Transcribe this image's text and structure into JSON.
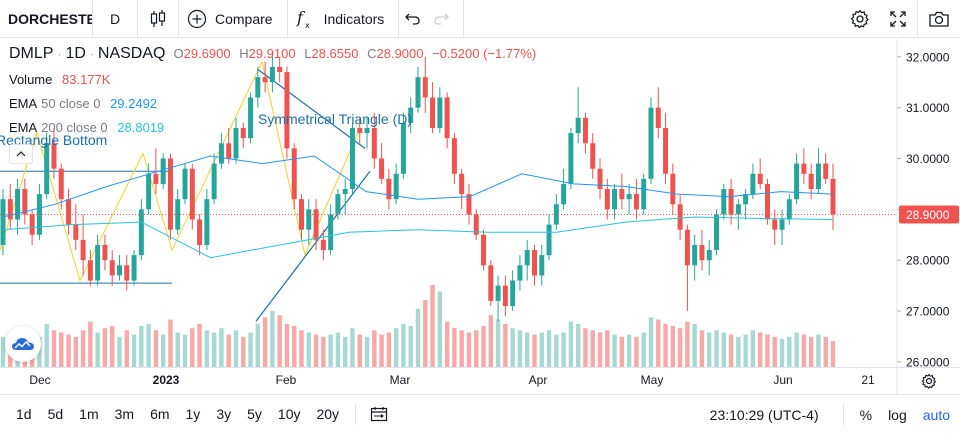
{
  "toolbar": {
    "symbol": "DORCHESTER",
    "interval": "D",
    "compare_label": "Compare",
    "indicators_label": "Indicators"
  },
  "legend": {
    "symbol": "DMLP",
    "interval": "1D",
    "exchange": "NASDAQ",
    "o_label": "O",
    "o": "29.6900",
    "h_label": "H",
    "h": "29.9100",
    "l_label": "L",
    "l": "28.6550",
    "c_label": "C",
    "c": "28.9000",
    "change": "−0.5200 (−1.77%)",
    "volume_name": "Volume",
    "volume_value": "83.177K",
    "ema50_name": "EMA",
    "ema50_params": "50 close 0",
    "ema50_value": "29.2492",
    "ema200_name": "EMA",
    "ema200_params": "200 close 0",
    "ema200_value": "28.8019"
  },
  "annotations": {
    "triangle_label": "Symmetrical Triangle (D)",
    "rectangle_label": "Rectangle Bottom"
  },
  "price_axis": {
    "ticks": [
      "32.0000",
      "31.0000",
      "30.0000",
      "29.0000",
      "28.0000",
      "27.0000",
      "26.0000"
    ],
    "last_price": "28.9000"
  },
  "time_axis": {
    "ticks": [
      "Dec",
      "2023",
      "Feb",
      "Mar",
      "Apr",
      "May",
      "Jun",
      "21"
    ]
  },
  "bottombar": {
    "ranges": [
      "1d",
      "5d",
      "1m",
      "3m",
      "6m",
      "1y",
      "3y",
      "5y",
      "10y",
      "20y"
    ],
    "clock": "23:10:29 (UTC-4)",
    "percent_label": "%",
    "log_label": "log",
    "auto_label": "auto"
  },
  "colors": {
    "up": "#26a69a",
    "down": "#ef5350",
    "vol_up": "#a8d8d2",
    "vol_down": "#f7a9a7",
    "ema50": "#2196f3",
    "ema200": "#26c6da",
    "drawing": "#1e6fa8",
    "zigzag": "#f2d22e"
  },
  "chart_data": {
    "type": "candlestick",
    "symbol": "DMLP",
    "x_range": [
      "2022-11-21",
      "2023-06-21"
    ],
    "ylim": [
      25.9,
      32.35
    ],
    "candles": [
      {
        "o": 28.3,
        "h": 29.4,
        "l": 28.1,
        "c": 29.2,
        "v": 140
      },
      {
        "o": 29.2,
        "h": 29.5,
        "l": 28.6,
        "c": 28.8,
        "v": 120
      },
      {
        "o": 28.8,
        "h": 29.6,
        "l": 28.5,
        "c": 29.4,
        "v": 110
      },
      {
        "o": 29.4,
        "h": 29.6,
        "l": 28.7,
        "c": 28.9,
        "v": 150
      },
      {
        "o": 28.9,
        "h": 29.0,
        "l": 28.3,
        "c": 28.5,
        "v": 130
      },
      {
        "o": 28.5,
        "h": 29.5,
        "l": 28.4,
        "c": 29.3,
        "v": 140
      },
      {
        "o": 29.3,
        "h": 30.5,
        "l": 29.2,
        "c": 30.3,
        "v": 200
      },
      {
        "o": 30.3,
        "h": 30.6,
        "l": 29.6,
        "c": 29.8,
        "v": 170
      },
      {
        "o": 29.8,
        "h": 29.9,
        "l": 29.0,
        "c": 29.2,
        "v": 160
      },
      {
        "o": 29.2,
        "h": 29.4,
        "l": 28.5,
        "c": 28.7,
        "v": 150
      },
      {
        "o": 28.7,
        "h": 29.1,
        "l": 28.2,
        "c": 28.4,
        "v": 140
      },
      {
        "o": 28.4,
        "h": 28.9,
        "l": 27.7,
        "c": 28.0,
        "v": 170
      },
      {
        "o": 28.0,
        "h": 28.2,
        "l": 27.5,
        "c": 27.6,
        "v": 210
      },
      {
        "o": 27.6,
        "h": 28.5,
        "l": 27.5,
        "c": 28.3,
        "v": 160
      },
      {
        "o": 28.3,
        "h": 28.5,
        "l": 27.8,
        "c": 28.0,
        "v": 180
      },
      {
        "o": 28.0,
        "h": 28.2,
        "l": 27.5,
        "c": 27.7,
        "v": 190
      },
      {
        "o": 27.7,
        "h": 28.1,
        "l": 27.6,
        "c": 27.9,
        "v": 140
      },
      {
        "o": 27.9,
        "h": 28.1,
        "l": 27.4,
        "c": 27.6,
        "v": 170
      },
      {
        "o": 27.6,
        "h": 28.2,
        "l": 27.5,
        "c": 28.1,
        "v": 150
      },
      {
        "o": 28.1,
        "h": 29.2,
        "l": 28.0,
        "c": 29.0,
        "v": 190
      },
      {
        "o": 29.0,
        "h": 29.9,
        "l": 28.9,
        "c": 29.7,
        "v": 200
      },
      {
        "o": 29.7,
        "h": 30.2,
        "l": 29.3,
        "c": 29.5,
        "v": 170
      },
      {
        "o": 29.5,
        "h": 30.1,
        "l": 29.4,
        "c": 30.0,
        "v": 150
      },
      {
        "o": 30.0,
        "h": 30.1,
        "l": 28.4,
        "c": 28.6,
        "v": 220
      },
      {
        "o": 28.6,
        "h": 29.4,
        "l": 28.5,
        "c": 29.2,
        "v": 160
      },
      {
        "o": 29.2,
        "h": 29.9,
        "l": 29.1,
        "c": 29.8,
        "v": 150
      },
      {
        "o": 29.8,
        "h": 29.9,
        "l": 28.6,
        "c": 28.8,
        "v": 180
      },
      {
        "o": 28.8,
        "h": 28.9,
        "l": 28.1,
        "c": 28.3,
        "v": 200
      },
      {
        "o": 28.3,
        "h": 29.4,
        "l": 28.2,
        "c": 29.2,
        "v": 170
      },
      {
        "o": 29.2,
        "h": 30.1,
        "l": 29.1,
        "c": 29.9,
        "v": 160
      },
      {
        "o": 29.9,
        "h": 30.5,
        "l": 29.8,
        "c": 30.3,
        "v": 180
      },
      {
        "o": 30.3,
        "h": 30.6,
        "l": 29.9,
        "c": 30.0,
        "v": 150
      },
      {
        "o": 30.0,
        "h": 30.8,
        "l": 29.9,
        "c": 30.6,
        "v": 170
      },
      {
        "o": 30.6,
        "h": 30.7,
        "l": 30.2,
        "c": 30.4,
        "v": 140
      },
      {
        "o": 30.4,
        "h": 31.3,
        "l": 30.3,
        "c": 31.2,
        "v": 160
      },
      {
        "o": 31.2,
        "h": 31.8,
        "l": 31.0,
        "c": 31.6,
        "v": 200
      },
      {
        "o": 31.6,
        "h": 31.9,
        "l": 31.3,
        "c": 31.5,
        "v": 230
      },
      {
        "o": 31.5,
        "h": 32.1,
        "l": 31.3,
        "c": 31.8,
        "v": 260
      },
      {
        "o": 31.8,
        "h": 32.0,
        "l": 31.5,
        "c": 31.7,
        "v": 240
      },
      {
        "o": 31.7,
        "h": 31.8,
        "l": 30.0,
        "c": 30.2,
        "v": 200
      },
      {
        "o": 30.2,
        "h": 30.3,
        "l": 29.0,
        "c": 29.2,
        "v": 190
      },
      {
        "o": 29.2,
        "h": 29.3,
        "l": 28.4,
        "c": 28.6,
        "v": 170
      },
      {
        "o": 28.6,
        "h": 29.2,
        "l": 28.3,
        "c": 29.0,
        "v": 160
      },
      {
        "o": 29.0,
        "h": 29.2,
        "l": 28.2,
        "c": 28.4,
        "v": 150
      },
      {
        "o": 28.4,
        "h": 28.6,
        "l": 28.0,
        "c": 28.2,
        "v": 140
      },
      {
        "o": 28.2,
        "h": 29.1,
        "l": 28.1,
        "c": 28.9,
        "v": 150
      },
      {
        "o": 28.9,
        "h": 29.4,
        "l": 28.8,
        "c": 29.3,
        "v": 160
      },
      {
        "o": 29.3,
        "h": 29.6,
        "l": 28.9,
        "c": 29.4,
        "v": 140
      },
      {
        "o": 29.4,
        "h": 30.7,
        "l": 29.3,
        "c": 30.6,
        "v": 180
      },
      {
        "o": 30.6,
        "h": 30.8,
        "l": 30.3,
        "c": 30.5,
        "v": 150
      },
      {
        "o": 30.5,
        "h": 30.8,
        "l": 30.2,
        "c": 30.6,
        "v": 140
      },
      {
        "o": 30.6,
        "h": 30.9,
        "l": 29.8,
        "c": 30.0,
        "v": 170
      },
      {
        "o": 30.0,
        "h": 30.3,
        "l": 29.5,
        "c": 29.6,
        "v": 150
      },
      {
        "o": 29.6,
        "h": 29.8,
        "l": 29.0,
        "c": 29.2,
        "v": 160
      },
      {
        "o": 29.2,
        "h": 29.9,
        "l": 29.1,
        "c": 29.7,
        "v": 180
      },
      {
        "o": 29.7,
        "h": 30.9,
        "l": 29.6,
        "c": 30.7,
        "v": 200
      },
      {
        "o": 30.7,
        "h": 31.2,
        "l": 30.5,
        "c": 31.0,
        "v": 190
      },
      {
        "o": 31.0,
        "h": 31.8,
        "l": 30.9,
        "c": 31.6,
        "v": 270
      },
      {
        "o": 31.6,
        "h": 32.0,
        "l": 30.9,
        "c": 31.2,
        "v": 310
      },
      {
        "o": 31.2,
        "h": 31.5,
        "l": 30.5,
        "c": 30.6,
        "v": 380
      },
      {
        "o": 30.6,
        "h": 31.4,
        "l": 30.5,
        "c": 31.2,
        "v": 350
      },
      {
        "o": 31.2,
        "h": 31.3,
        "l": 30.2,
        "c": 30.4,
        "v": 210
      },
      {
        "o": 30.4,
        "h": 30.5,
        "l": 29.5,
        "c": 29.7,
        "v": 180
      },
      {
        "o": 29.7,
        "h": 29.8,
        "l": 29.0,
        "c": 29.3,
        "v": 170
      },
      {
        "o": 29.3,
        "h": 29.5,
        "l": 28.7,
        "c": 28.9,
        "v": 160
      },
      {
        "o": 28.9,
        "h": 29.0,
        "l": 28.4,
        "c": 28.5,
        "v": 170
      },
      {
        "o": 28.5,
        "h": 28.6,
        "l": 27.8,
        "c": 27.9,
        "v": 190
      },
      {
        "o": 27.9,
        "h": 28.0,
        "l": 27.1,
        "c": 27.2,
        "v": 240
      },
      {
        "o": 27.2,
        "h": 27.7,
        "l": 26.8,
        "c": 27.5,
        "v": 220
      },
      {
        "o": 27.5,
        "h": 27.7,
        "l": 26.9,
        "c": 27.1,
        "v": 200
      },
      {
        "o": 27.1,
        "h": 27.8,
        "l": 27.0,
        "c": 27.6,
        "v": 180
      },
      {
        "o": 27.6,
        "h": 28.1,
        "l": 27.4,
        "c": 27.9,
        "v": 170
      },
      {
        "o": 27.9,
        "h": 28.4,
        "l": 27.6,
        "c": 28.2,
        "v": 160
      },
      {
        "o": 28.2,
        "h": 28.3,
        "l": 27.5,
        "c": 27.7,
        "v": 150
      },
      {
        "o": 27.7,
        "h": 28.3,
        "l": 27.5,
        "c": 28.1,
        "v": 160
      },
      {
        "o": 28.1,
        "h": 28.9,
        "l": 28.0,
        "c": 28.7,
        "v": 170
      },
      {
        "o": 28.7,
        "h": 29.3,
        "l": 28.6,
        "c": 29.1,
        "v": 150
      },
      {
        "o": 29.1,
        "h": 29.8,
        "l": 29.0,
        "c": 29.5,
        "v": 160
      },
      {
        "o": 29.5,
        "h": 30.6,
        "l": 29.4,
        "c": 30.5,
        "v": 210
      },
      {
        "o": 30.5,
        "h": 31.4,
        "l": 30.3,
        "c": 30.8,
        "v": 200
      },
      {
        "o": 30.8,
        "h": 30.9,
        "l": 30.1,
        "c": 30.3,
        "v": 180
      },
      {
        "o": 30.3,
        "h": 30.5,
        "l": 29.6,
        "c": 29.8,
        "v": 170
      },
      {
        "o": 29.8,
        "h": 30.0,
        "l": 29.2,
        "c": 29.4,
        "v": 160
      },
      {
        "o": 29.4,
        "h": 29.6,
        "l": 28.8,
        "c": 29.0,
        "v": 170
      },
      {
        "o": 29.0,
        "h": 29.5,
        "l": 28.8,
        "c": 29.4,
        "v": 150
      },
      {
        "o": 29.4,
        "h": 29.7,
        "l": 29.0,
        "c": 29.2,
        "v": 140
      },
      {
        "o": 29.2,
        "h": 29.5,
        "l": 28.9,
        "c": 29.3,
        "v": 150
      },
      {
        "o": 29.3,
        "h": 29.6,
        "l": 28.8,
        "c": 29.0,
        "v": 140
      },
      {
        "o": 29.0,
        "h": 29.7,
        "l": 28.9,
        "c": 29.6,
        "v": 160
      },
      {
        "o": 29.6,
        "h": 31.2,
        "l": 29.5,
        "c": 31.0,
        "v": 230
      },
      {
        "o": 31.0,
        "h": 31.4,
        "l": 30.4,
        "c": 30.6,
        "v": 220
      },
      {
        "o": 30.6,
        "h": 30.9,
        "l": 29.5,
        "c": 29.7,
        "v": 200
      },
      {
        "o": 29.7,
        "h": 29.9,
        "l": 28.9,
        "c": 29.1,
        "v": 190
      },
      {
        "o": 29.1,
        "h": 29.3,
        "l": 28.4,
        "c": 28.6,
        "v": 180
      },
      {
        "o": 28.6,
        "h": 28.7,
        "l": 27.0,
        "c": 27.9,
        "v": 210
      },
      {
        "o": 27.9,
        "h": 28.5,
        "l": 27.6,
        "c": 28.3,
        "v": 200
      },
      {
        "o": 28.3,
        "h": 28.6,
        "l": 27.8,
        "c": 28.0,
        "v": 170
      },
      {
        "o": 28.0,
        "h": 28.4,
        "l": 27.7,
        "c": 28.2,
        "v": 160
      },
      {
        "o": 28.2,
        "h": 29.0,
        "l": 28.1,
        "c": 28.9,
        "v": 170
      },
      {
        "o": 28.9,
        "h": 29.5,
        "l": 28.8,
        "c": 29.4,
        "v": 160
      },
      {
        "o": 29.4,
        "h": 29.6,
        "l": 28.7,
        "c": 28.9,
        "v": 150
      },
      {
        "o": 28.9,
        "h": 29.2,
        "l": 28.6,
        "c": 29.1,
        "v": 140
      },
      {
        "o": 29.1,
        "h": 29.4,
        "l": 28.8,
        "c": 29.3,
        "v": 150
      },
      {
        "o": 29.3,
        "h": 29.9,
        "l": 29.2,
        "c": 29.7,
        "v": 170
      },
      {
        "o": 29.7,
        "h": 30.0,
        "l": 29.4,
        "c": 29.5,
        "v": 160
      },
      {
        "o": 29.5,
        "h": 29.6,
        "l": 28.7,
        "c": 28.8,
        "v": 150
      },
      {
        "o": 28.8,
        "h": 29.0,
        "l": 28.3,
        "c": 28.6,
        "v": 140
      },
      {
        "o": 28.6,
        "h": 29.0,
        "l": 28.3,
        "c": 28.8,
        "v": 130
      },
      {
        "o": 28.8,
        "h": 29.3,
        "l": 28.7,
        "c": 29.2,
        "v": 140
      },
      {
        "o": 29.2,
        "h": 30.1,
        "l": 29.1,
        "c": 29.9,
        "v": 160
      },
      {
        "o": 29.9,
        "h": 30.2,
        "l": 29.5,
        "c": 29.7,
        "v": 150
      },
      {
        "o": 29.7,
        "h": 29.9,
        "l": 29.2,
        "c": 29.4,
        "v": 140
      },
      {
        "o": 29.4,
        "h": 30.2,
        "l": 29.3,
        "c": 29.9,
        "v": 150
      },
      {
        "o": 29.9,
        "h": 30.1,
        "l": 29.5,
        "c": 29.6,
        "v": 140
      },
      {
        "o": 29.6,
        "h": 29.9,
        "l": 28.6,
        "c": 28.9,
        "v": 120
      }
    ],
    "ema50": [
      28.85,
      29.1,
      29.45,
      29.75,
      30.05,
      29.9,
      30.05,
      29.35,
      29.2,
      29.25,
      29.7,
      29.5,
      29.45,
      29.3,
      29.25,
      29.35,
      29.3
    ],
    "ema200": [
      28.6,
      28.7,
      28.75,
      28.05,
      28.3,
      28.55,
      28.6,
      28.55,
      28.55,
      28.75,
      28.85,
      28.82,
      28.8
    ]
  }
}
